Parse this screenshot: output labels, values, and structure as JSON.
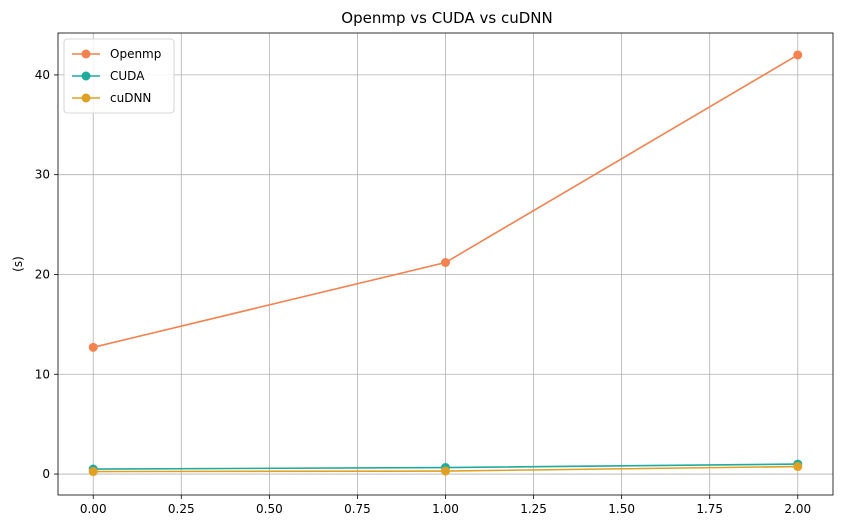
{
  "chart_data": {
    "type": "line",
    "title": "Openmp vs CUDA vs cuDNN",
    "xlabel": "",
    "ylabel": "(s)",
    "x": [
      0,
      1,
      2
    ],
    "xlim": [
      -0.1,
      2.1
    ],
    "ylim": [
      -2.1,
      44.2
    ],
    "xticks": [
      0.0,
      0.25,
      0.5,
      0.75,
      1.0,
      1.25,
      1.5,
      1.75,
      2.0
    ],
    "xtick_labels": [
      "0.00",
      "0.25",
      "0.50",
      "0.75",
      "1.00",
      "1.25",
      "1.50",
      "1.75",
      "2.00"
    ],
    "yticks": [
      0,
      10,
      20,
      30,
      40
    ],
    "ytick_labels": [
      "0",
      "10",
      "20",
      "30",
      "40"
    ],
    "grid": true,
    "legend": "top-left",
    "series": [
      {
        "name": "Openmp",
        "values": [
          12.7,
          21.2,
          42.0
        ],
        "color": "#f4814f"
      },
      {
        "name": "CUDA",
        "values": [
          0.5,
          0.65,
          1.0
        ],
        "color": "#20ab9f"
      },
      {
        "name": "cuDNN",
        "values": [
          0.25,
          0.3,
          0.75
        ],
        "color": "#e0a123"
      }
    ]
  }
}
